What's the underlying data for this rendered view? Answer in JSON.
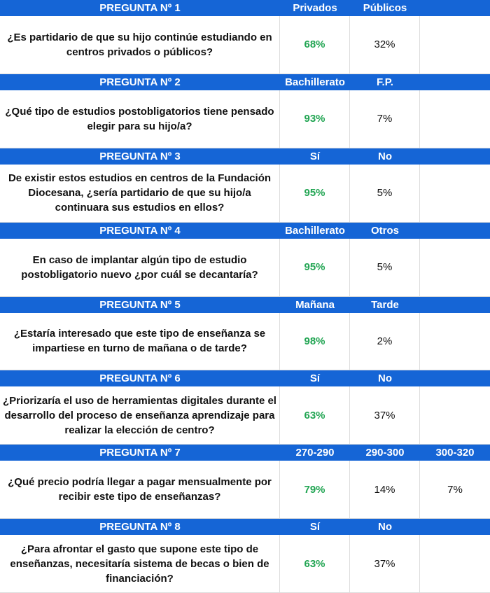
{
  "questions": [
    {
      "title": "PREGUNTA Nº 1",
      "options": [
        "Privados",
        "Públicos"
      ],
      "text": "¿Es partidario de que su hijo continúe estudiando en centros privados o públicos?",
      "answers": [
        "68%",
        "32%"
      ]
    },
    {
      "title": "PREGUNTA Nº 2",
      "options": [
        "Bachillerato",
        "F.P."
      ],
      "text": "¿Qué tipo de estudios postobligatorios tiene pensado elegir para su hijo/a?",
      "answers": [
        "93%",
        "7%"
      ]
    },
    {
      "title": "PREGUNTA Nº 3",
      "options": [
        "Sí",
        "No"
      ],
      "text": "De existir estos estudios en centros de la Fundación Diocesana, ¿sería partidario de que su hijo/a continuara sus estudios en ellos?",
      "answers": [
        "95%",
        "5%"
      ]
    },
    {
      "title": "PREGUNTA Nº 4",
      "options": [
        "Bachillerato",
        "Otros"
      ],
      "text": "En caso de implantar algún tipo de estudio postobligatorio nuevo ¿por cuál se decantaría?",
      "answers": [
        "95%",
        "5%"
      ]
    },
    {
      "title": "PREGUNTA Nº 5",
      "options": [
        "Mañana",
        "Tarde"
      ],
      "text": "¿Estaría interesado que este tipo de enseñanza se impartiese  en turno de mañana o de tarde?",
      "answers": [
        "98%",
        "2%"
      ]
    },
    {
      "title": "PREGUNTA Nº 6",
      "options": [
        "Sí",
        "No"
      ],
      "text": "¿Priorizaría el uso de herramientas digitales durante el desarrollo del proceso de enseñanza aprendizaje para realizar la elección de centro?",
      "answers": [
        "63%",
        "37%"
      ]
    },
    {
      "title": "PREGUNTA Nº 7",
      "options": [
        "270-290",
        "290-300",
        "300-320"
      ],
      "text": "¿Qué precio podría llegar a pagar mensualmente por recibir este tipo de enseñanzas?",
      "answers": [
        "79%",
        "14%",
        "7%"
      ]
    },
    {
      "title": "PREGUNTA Nº 8",
      "options": [
        "Sí",
        "No"
      ],
      "text": "¿Para afrontar el gasto que supone este tipo de enseñanzas, necesitaría sistema de becas o bien de financiación?",
      "answers": [
        "63%",
        "37%"
      ]
    }
  ]
}
